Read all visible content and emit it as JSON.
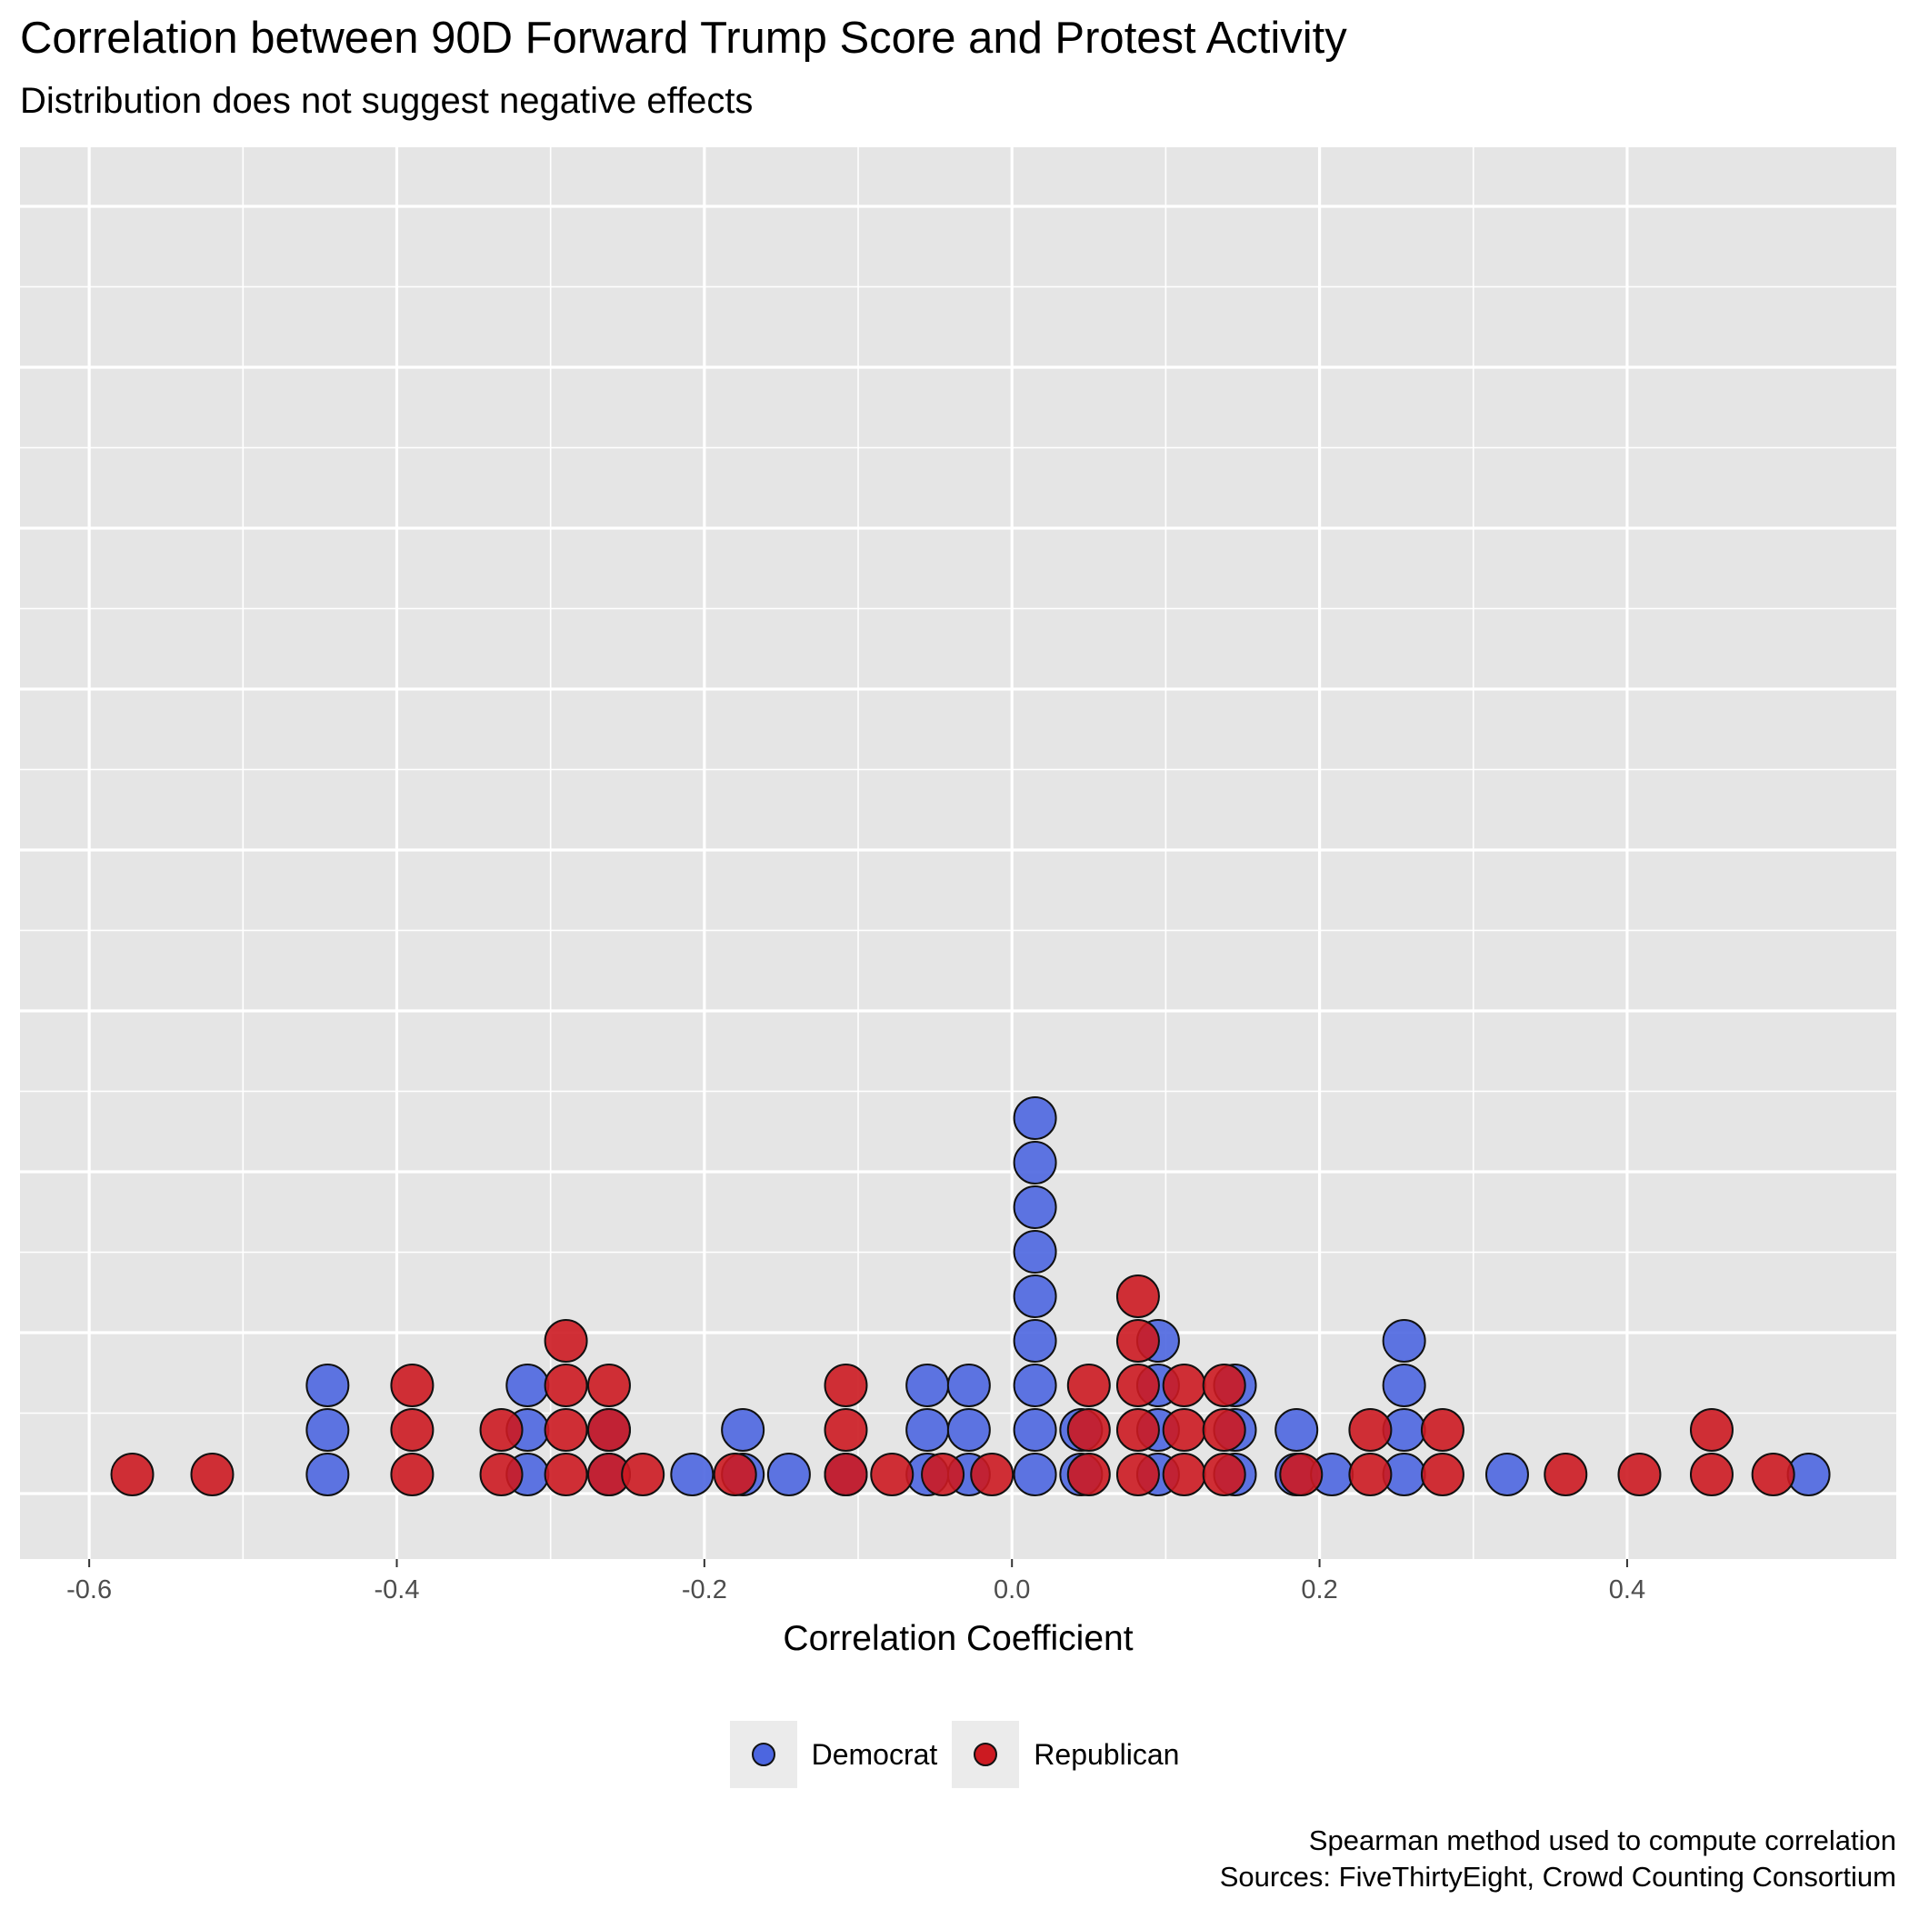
{
  "colors": {
    "panel_background": "#e5e5e5",
    "grid": "#ffffff",
    "democrat": "#4c66e0",
    "republican": "#cc1a21",
    "point_outline": "#111111",
    "legend_key_background": "#ebebeb"
  },
  "legend": {
    "items": [
      {
        "label": "Democrat",
        "color": "#4c66e0"
      },
      {
        "label": "Republican",
        "color": "#cc1a21"
      }
    ]
  },
  "caption": {
    "line1": "Spearman method used to compute correlation",
    "line2": "Sources: FiveThirtyEight, Crowd Counting Consortium"
  },
  "chart_data": {
    "type": "dotplot",
    "title": "Correlation between 90D Forward Trump Score and Protest Activity",
    "subtitle": "Distribution does not suggest negative effects",
    "xlabel": "Correlation Coefficient",
    "ylabel": "",
    "xlim": [
      -0.645,
      0.575
    ],
    "x_ticks": [
      -0.6,
      -0.4,
      -0.2,
      0.0,
      0.2,
      0.4
    ],
    "x_tick_labels": [
      "-0.6",
      "-0.4",
      "-0.2",
      "0.0",
      "0.2",
      "0.4"
    ],
    "y_axis_text": "none",
    "grid": true,
    "legend_position": "bottom",
    "series": [
      {
        "name": "Democrat",
        "color": "#4c66e0",
        "points": [
          {
            "x": -0.445,
            "count": 3
          },
          {
            "x": -0.315,
            "count": 3
          },
          {
            "x": -0.262,
            "count": 2
          },
          {
            "x": -0.208,
            "count": 1
          },
          {
            "x": -0.175,
            "count": 2
          },
          {
            "x": -0.145,
            "count": 1
          },
          {
            "x": -0.108,
            "count": 1
          },
          {
            "x": -0.055,
            "count": 3
          },
          {
            "x": -0.028,
            "count": 3
          },
          {
            "x": 0.015,
            "count": 9
          },
          {
            "x": 0.045,
            "count": 2
          },
          {
            "x": 0.095,
            "count": 4
          },
          {
            "x": 0.145,
            "count": 3
          },
          {
            "x": 0.185,
            "count": 2
          },
          {
            "x": 0.208,
            "count": 1
          },
          {
            "x": 0.255,
            "count": 4
          },
          {
            "x": 0.322,
            "count": 1
          },
          {
            "x": 0.518,
            "count": 1
          }
        ]
      },
      {
        "name": "Republican",
        "color": "#cc1a21",
        "points": [
          {
            "x": -0.572,
            "count": 1
          },
          {
            "x": -0.52,
            "count": 1
          },
          {
            "x": -0.39,
            "count": 3
          },
          {
            "x": -0.332,
            "count": 2
          },
          {
            "x": -0.29,
            "count": 4
          },
          {
            "x": -0.262,
            "count": 3
          },
          {
            "x": -0.24,
            "count": 1
          },
          {
            "x": -0.18,
            "count": 1
          },
          {
            "x": -0.108,
            "count": 3
          },
          {
            "x": -0.078,
            "count": 1
          },
          {
            "x": -0.045,
            "count": 1
          },
          {
            "x": -0.013,
            "count": 1
          },
          {
            "x": 0.05,
            "count": 3
          },
          {
            "x": 0.082,
            "count": 5
          },
          {
            "x": 0.112,
            "count": 3
          },
          {
            "x": 0.138,
            "count": 3
          },
          {
            "x": 0.188,
            "count": 1
          },
          {
            "x": 0.233,
            "count": 2
          },
          {
            "x": 0.28,
            "count": 2
          },
          {
            "x": 0.36,
            "count": 1
          },
          {
            "x": 0.408,
            "count": 1
          },
          {
            "x": 0.455,
            "count": 2
          },
          {
            "x": 0.495,
            "count": 1
          }
        ]
      }
    ]
  }
}
